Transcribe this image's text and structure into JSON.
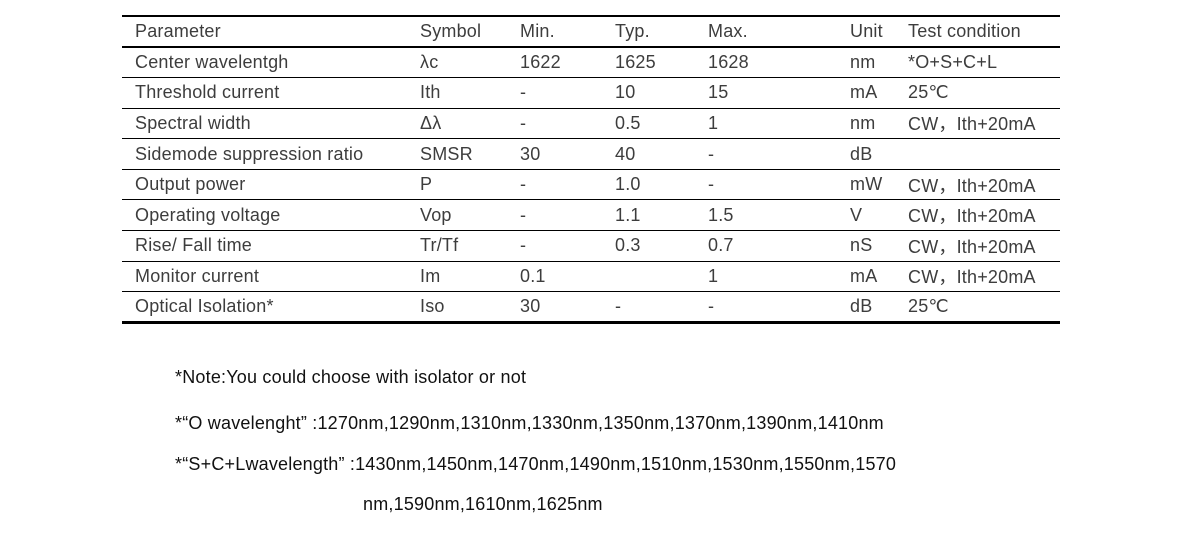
{
  "table": {
    "columns": [
      "Parameter",
      "Symbol",
      "Min.",
      "Typ.",
      "Max.",
      "Unit",
      "Test condition"
    ],
    "rows": [
      {
        "parameter": "Center wavelentgh",
        "symbol": "λc",
        "min": "1622",
        "typ": "1625",
        "max": "1628",
        "unit": "nm",
        "test": "*O+S+C+L"
      },
      {
        "parameter": "Threshold current",
        "symbol": "Ith",
        "min": "-",
        "typ": "10",
        "max": "15",
        "unit": "mA",
        "test": "25℃"
      },
      {
        "parameter": "Spectral width",
        "symbol": "Δλ",
        "min": "-",
        "typ": "0.5",
        "max": "1",
        "unit": "nm",
        "test": "CW，Ith+20mA"
      },
      {
        "parameter": "Sidemode suppression ratio",
        "symbol": "SMSR",
        "min": "30",
        "typ": "40",
        "max": "-",
        "unit": "dB",
        "test": ""
      },
      {
        "parameter": "Output power",
        "symbol": "P",
        "min": "-",
        "typ": "1.0",
        "max": "-",
        "unit": "mW",
        "test": "CW，Ith+20mA"
      },
      {
        "parameter": "Operating voltage",
        "symbol": "Vop",
        "min": "-",
        "typ": "1.1",
        "max": "1.5",
        "unit": "V",
        "test": "CW，Ith+20mA"
      },
      {
        "parameter": "Rise/ Fall time",
        "symbol": "Tr/Tf",
        "min": "-",
        "typ": "0.3",
        "max": "0.7",
        "unit": "nS",
        "test": "CW，Ith+20mA"
      },
      {
        "parameter": "Monitor current",
        "symbol": "Im",
        "min": "0.1",
        "typ": "",
        "max": "1",
        "unit": "mA",
        "test": "CW，Ith+20mA"
      },
      {
        "parameter": "Optical Isolation*",
        "symbol": "Iso",
        "min": "30",
        "typ": "-",
        "max": "-",
        "unit": "dB",
        "test": "25℃"
      }
    ]
  },
  "notes": {
    "note1": "*Note:You could choose with isolator or not",
    "note2": "*“O wavelenght” :1270nm,1290nm,1310nm,1330nm,1350nm,1370nm,1390nm,1410nm",
    "note3_line1": "*“S+C+Lwavelength”  :1430nm,1450nm,1470nm,1490nm,1510nm,1530nm,1550nm,1570",
    "note3_line2": "nm,1590nm,1610nm,1625nm"
  },
  "colors": {
    "background": "#ffffff",
    "table_text": "#3d3d3d",
    "notes_text": "#111111",
    "rule_line": "#000000"
  }
}
